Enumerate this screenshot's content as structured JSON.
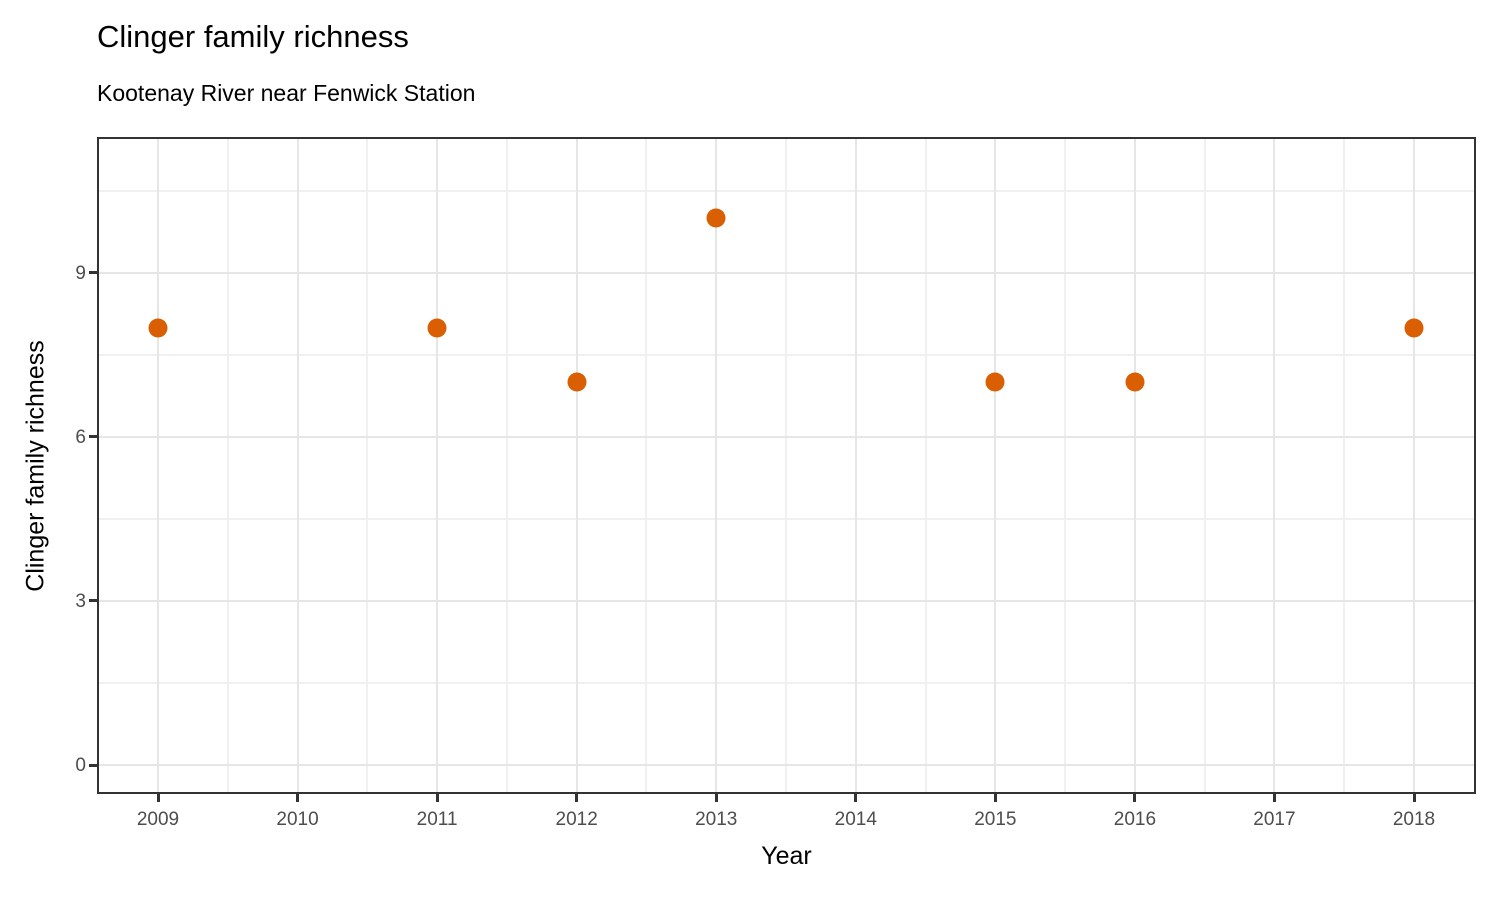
{
  "chart_data": {
    "type": "scatter",
    "title": "Clinger family richness",
    "subtitle": "Kootenay River near Fenwick Station",
    "xlabel": "Year",
    "ylabel": "Clinger family richness",
    "points": [
      {
        "year": 2009,
        "value": 8
      },
      {
        "year": 2011,
        "value": 8
      },
      {
        "year": 2012,
        "value": 7
      },
      {
        "year": 2013,
        "value": 10
      },
      {
        "year": 2015,
        "value": 7
      },
      {
        "year": 2016,
        "value": 7
      },
      {
        "year": 2018,
        "value": 8
      }
    ],
    "x_ticks": [
      2009,
      2010,
      2011,
      2012,
      2013,
      2014,
      2015,
      2016,
      2017,
      2018
    ],
    "y_ticks": [
      0,
      3,
      6,
      9
    ],
    "x_minor_ticks": [
      2009.5,
      2010.5,
      2011.5,
      2012.5,
      2013.5,
      2014.5,
      2015.5,
      2016.5,
      2017.5
    ],
    "y_minor_ticks": [
      1.5,
      4.5,
      7.5,
      10.5
    ],
    "xlim": [
      2008.57,
      2018.44
    ],
    "ylim": [
      -0.5,
      11.5
    ],
    "grid": true,
    "legend": "none",
    "point_color": "#D95F02",
    "panel_border_color": "#333333",
    "grid_major_color": "#e6e6e6",
    "grid_minor_color": "#f0f0f0",
    "tick_label_color": "#4d4d4d"
  }
}
